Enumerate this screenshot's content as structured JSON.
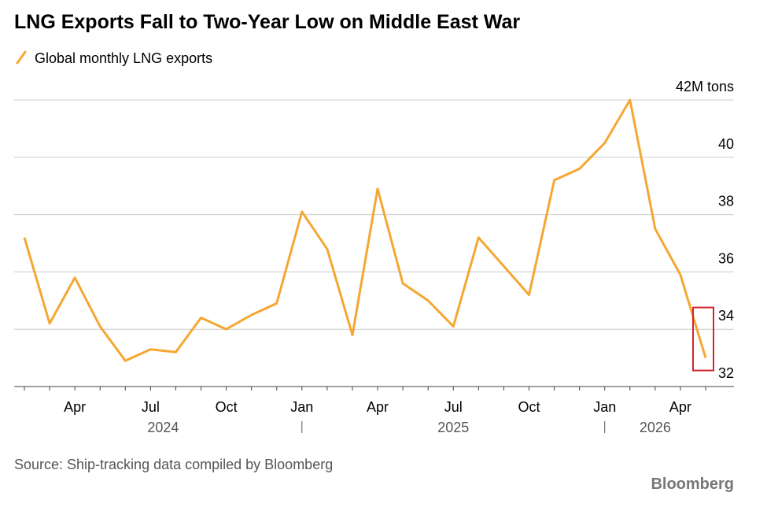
{
  "chart_data": {
    "type": "line",
    "title": "LNG Exports Fall to Two-Year Low on Middle East War",
    "source": "Source: Ship-tracking data compiled by Bloomberg",
    "brand": "Bloomberg",
    "categories": [
      null,
      null,
      "Apr",
      null,
      null,
      "Jul",
      null,
      null,
      "Oct",
      null,
      null,
      "Jan",
      null,
      null,
      "Apr",
      null,
      null,
      "Jul",
      null,
      null,
      "Oct",
      null,
      null,
      "Jan",
      null,
      null,
      "Apr",
      null
    ],
    "years": [
      "2024",
      "2025",
      "2026"
    ],
    "series": [
      {
        "name": "Global monthly LNG exports",
        "color": "#f5a733",
        "values": [
          37.2,
          34.2,
          35.8,
          34.1,
          32.9,
          33.3,
          33.2,
          34.4,
          34.0,
          34.5,
          34.9,
          38.1,
          36.8,
          33.8,
          38.9,
          35.6,
          35.0,
          34.1,
          37.2,
          36.2,
          35.2,
          39.2,
          39.6,
          40.5,
          42.0,
          37.5,
          35.9,
          33.0
        ]
      }
    ],
    "ylim": [
      32,
      42
    ],
    "yticks": [
      32,
      34,
      36,
      38,
      40,
      {
        "value": 42,
        "label": "42M tons"
      }
    ],
    "grid": true,
    "highlight_color": "#d0262f"
  }
}
